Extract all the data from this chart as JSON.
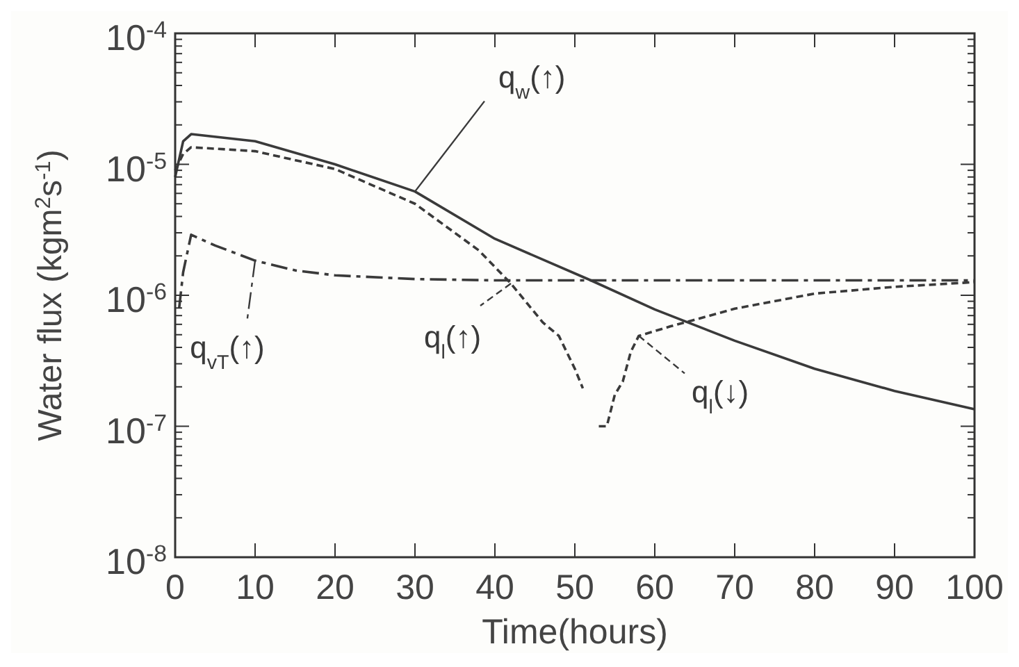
{
  "chart_data": {
    "type": "line",
    "xlabel": "Time(hours)",
    "ylabel": "Water flux (kgm$^{2}$s$^{-1}$)",
    "log": "y",
    "grid": false,
    "legend": "top left",
    "marker": "none",
    "xlim": [
      0,
      100
    ],
    "xticks": [
      0,
      10,
      20,
      30,
      40,
      50,
      60,
      70,
      80,
      90,
      100
    ],
    "ylim": [
      1e-08,
      0.0001
    ],
    "yticks": [
      {
        "value": 1e-08,
        "label": "10$^{-8}$"
      },
      {
        "value": 1e-07,
        "label": "10$^{-7}$"
      },
      {
        "value": 1e-06,
        "label": "10$^{-6}$"
      },
      {
        "value": 1e-05,
        "label": "10$^{-5}$"
      },
      {
        "value": 0.0001,
        "label": "10$^{-4}$"
      }
    ],
    "series": [
      {
        "name": "q$_{w}$(↑)",
        "color": "#3a3a3a",
        "line_style": "solid",
        "x": [
          0,
          1,
          2,
          10,
          20,
          30,
          40,
          52,
          60,
          70,
          80,
          90,
          100
        ],
        "values": [
          8e-06,
          1.5e-05,
          1.7e-05,
          1.5e-05,
          1e-05,
          6.2e-06,
          2.7e-06,
          1.3e-06,
          7.8e-07,
          4.5e-07,
          2.75e-07,
          1.86e-07,
          1.35e-07
        ]
      },
      {
        "name": "q$_{vT}$(↑)",
        "color": "#3a3a3a",
        "line_style": "dashdot",
        "x": [
          0.5,
          1,
          2,
          5,
          10,
          15,
          20,
          30,
          40,
          50,
          60,
          70,
          80,
          90,
          100
        ],
        "values": [
          8e-07,
          1.5e-06,
          2.9e-06,
          2.4e-06,
          1.84e-06,
          1.55e-06,
          1.42e-06,
          1.33e-06,
          1.3e-06,
          1.3e-06,
          1.3e-06,
          1.3e-06,
          1.3e-06,
          1.3e-06,
          1.3e-06
        ]
      },
      {
        "name": "q$_{l}$(↑)",
        "color": "#3a3a3a",
        "line_style": "dashed",
        "x": [
          0,
          1,
          2,
          10,
          20,
          30,
          38,
          42,
          46,
          48,
          50,
          51
        ],
        "values": [
          9e-06,
          1.2e-05,
          1.35e-05,
          1.26e-05,
          9.2e-06,
          5e-06,
          2.2e-06,
          1.23e-06,
          6.2e-07,
          4.9e-07,
          2.75e-07,
          1.95e-07
        ]
      },
      {
        "name": "q$_{l}$(↓)",
        "color": "#3a3a3a",
        "line_style": "dashed",
        "x": [
          53,
          54,
          55,
          56,
          57,
          58,
          62,
          65,
          70,
          80,
          90,
          100
        ],
        "values": [
          1e-07,
          1e-07,
          1.74e-07,
          2.2e-07,
          3.7e-07,
          4.9e-07,
          5.8e-07,
          6.5e-07,
          7.9e-07,
          1.03e-06,
          1.16e-06,
          1.26e-06
        ]
      }
    ]
  }
}
